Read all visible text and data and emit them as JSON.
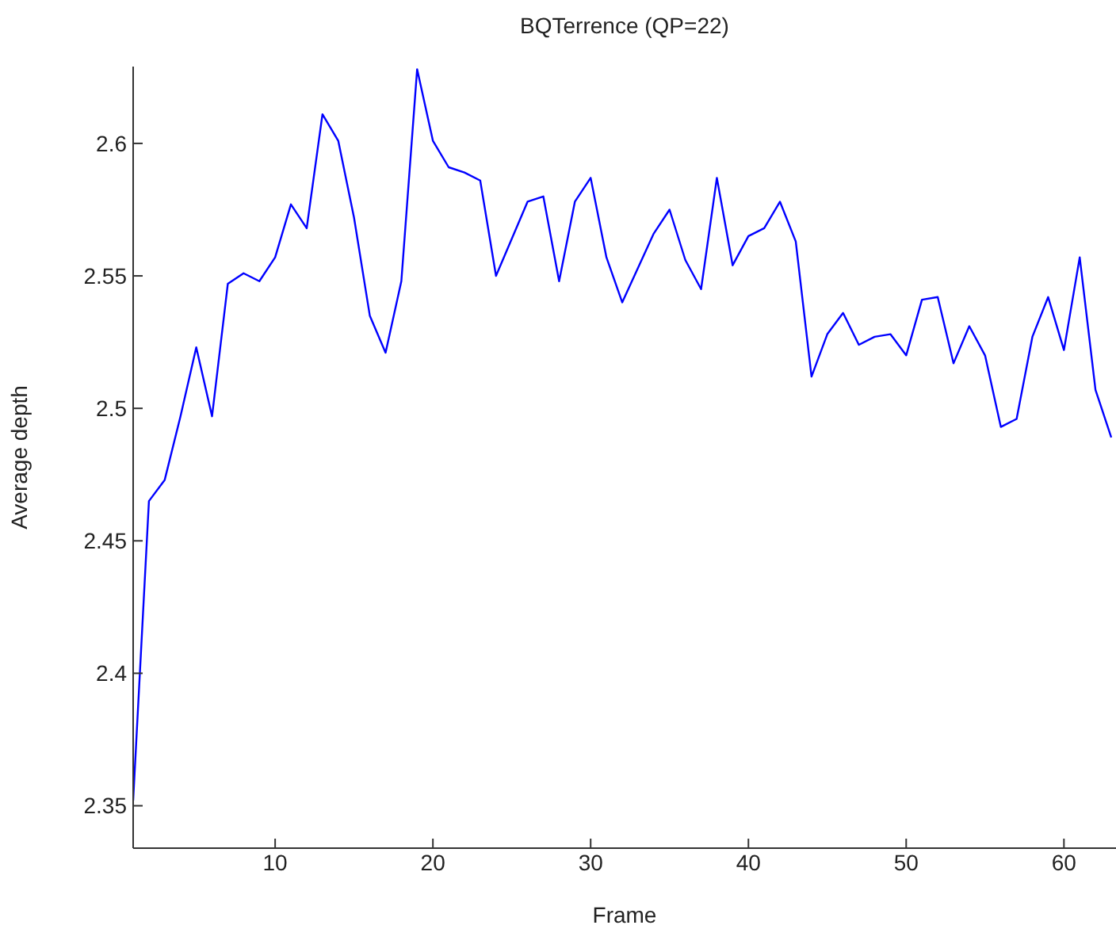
{
  "chart_data": {
    "type": "line",
    "title": "BQTerrence (QP=22)",
    "xlabel": "Frame",
    "ylabel": "Average depth",
    "x": [
      1,
      2,
      3,
      4,
      5,
      6,
      7,
      8,
      9,
      10,
      11,
      12,
      13,
      14,
      15,
      16,
      17,
      18,
      19,
      20,
      21,
      22,
      23,
      24,
      25,
      26,
      27,
      28,
      29,
      30,
      31,
      32,
      33,
      34,
      35,
      36,
      37,
      38,
      39,
      40,
      41,
      42,
      43,
      44,
      45,
      46,
      47,
      48,
      49,
      50,
      51,
      52,
      53,
      54,
      55,
      56,
      57,
      58,
      59,
      60,
      61,
      62,
      63
    ],
    "series": [
      {
        "color": "#0000ff",
        "values": [
          2.352,
          2.465,
          2.473,
          2.497,
          2.523,
          2.497,
          2.547,
          2.551,
          2.548,
          2.557,
          2.577,
          2.568,
          2.611,
          2.601,
          2.572,
          2.535,
          2.521,
          2.548,
          2.628,
          2.601,
          2.591,
          2.589,
          2.586,
          2.55,
          2.564,
          2.578,
          2.58,
          2.548,
          2.578,
          2.587,
          2.557,
          2.54,
          2.553,
          2.566,
          2.575,
          2.556,
          2.545,
          2.587,
          2.554,
          2.565,
          2.568,
          2.578,
          2.563,
          2.512,
          2.528,
          2.536,
          2.524,
          2.527,
          2.528,
          2.52,
          2.541,
          2.542,
          2.517,
          2.531,
          2.52,
          2.493,
          2.496,
          2.527,
          2.542,
          2.522,
          2.557,
          2.507,
          2.489
        ]
      }
    ],
    "xlim": [
      1,
      63.3
    ],
    "xticks": [
      10,
      20,
      30,
      40,
      50,
      60
    ],
    "ylim": [
      2.334,
      2.629
    ],
    "yticks": [
      2.35,
      2.4,
      2.45,
      2.5,
      2.55,
      2.6
    ],
    "grid": false,
    "legend": false,
    "marker": "none",
    "line_style": "solid"
  }
}
